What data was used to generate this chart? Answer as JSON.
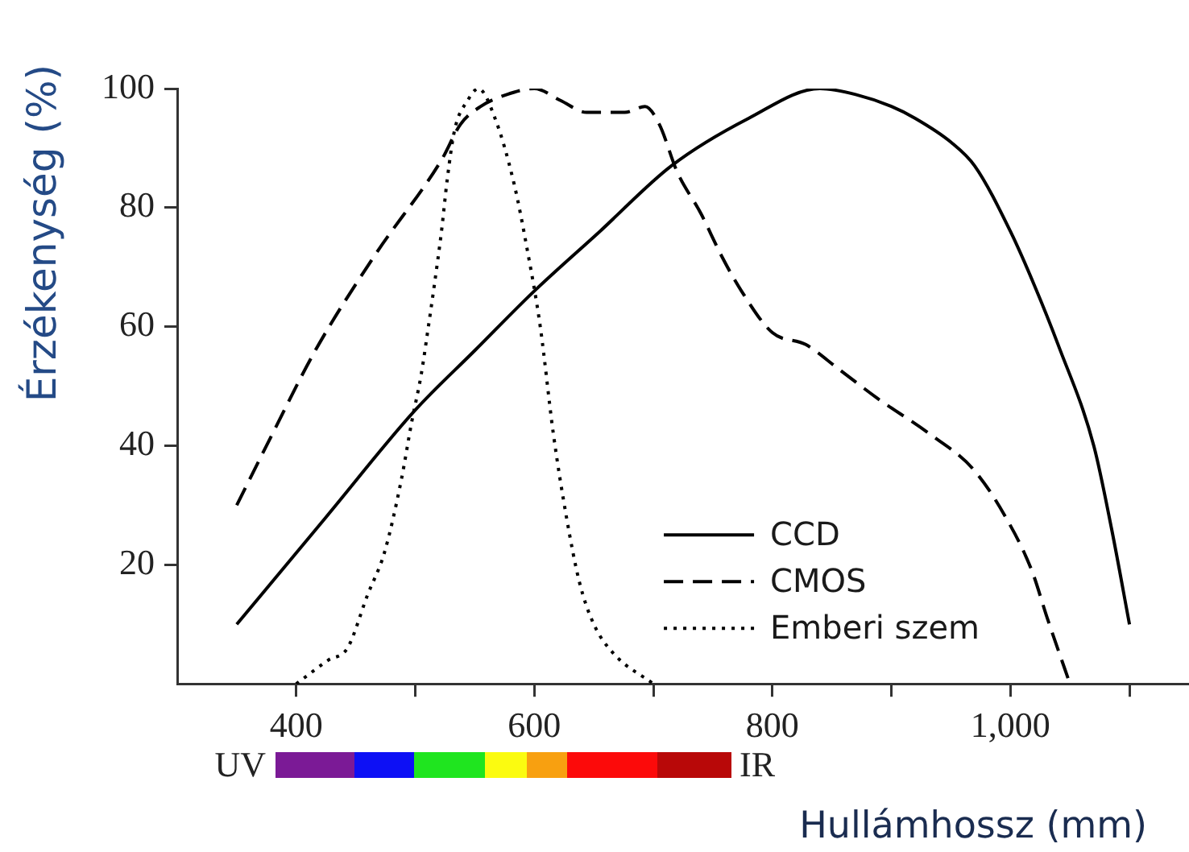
{
  "chart_data": {
    "type": "line",
    "xlabel": "Hullámhossz (mm)",
    "ylabel": "Érzékenység (%)",
    "xlim": [
      300,
      1150
    ],
    "ylim": [
      0,
      100
    ],
    "xticks": [
      400,
      {
        "value": 500,
        "label": null
      },
      600,
      {
        "value": 700,
        "label": null
      },
      800,
      {
        "value": 900,
        "label": null
      },
      {
        "value": 1000,
        "label": "1,000"
      },
      {
        "value": 1100,
        "label": null
      }
    ],
    "yticks": [
      20,
      40,
      60,
      80,
      100
    ],
    "grid": false,
    "legend": "bottom right",
    "annotations": [
      "UV",
      "IR"
    ],
    "series": [
      {
        "name": "CCD",
        "color": "#000000",
        "line_style": "solid",
        "x": [
          350,
          425,
          500,
          550,
          600,
          655,
          715,
          780,
          840,
          870,
          900,
          920,
          950,
          970,
          1000,
          1020,
          1040,
          1070,
          1085,
          1100
        ],
        "values": [
          10,
          28,
          46,
          56,
          66,
          76,
          87,
          95,
          100,
          99,
          97,
          95,
          91,
          87,
          76,
          67,
          57,
          40,
          26,
          10
        ]
      },
      {
        "name": "CMOS",
        "color": "#000000",
        "line_style": "dashed",
        "x": [
          350,
          380,
          416,
          466,
          522,
          538,
          555,
          577,
          600,
          622,
          644,
          676,
          693,
          705,
          720,
          740,
          757,
          774,
          800,
          828,
          855,
          888,
          932,
          969,
          996,
          1018,
          1031,
          1050
        ],
        "values": [
          30,
          42,
          56,
          72,
          88,
          94,
          97,
          99,
          100,
          98,
          96,
          96,
          97,
          94,
          86,
          79,
          72,
          66,
          59,
          57,
          53,
          48,
          42,
          36,
          28,
          19,
          11,
          0
        ]
      },
      {
        "name": "Emberi szem",
        "color": "#000000",
        "line_style": "dotted",
        "x": [
          400,
          427,
          443,
          460,
          474,
          488,
          497,
          505,
          511,
          516,
          522,
          527,
          533,
          544,
          553,
          567,
          583,
          594,
          605,
          616,
          627,
          638,
          650,
          667,
          700
        ],
        "values": [
          0,
          4,
          6,
          15,
          22,
          34,
          44,
          52,
          60,
          67,
          76,
          85,
          93,
          98,
          100,
          95,
          84,
          73,
          60,
          42,
          28,
          17,
          10,
          5,
          0
        ]
      }
    ]
  }
}
